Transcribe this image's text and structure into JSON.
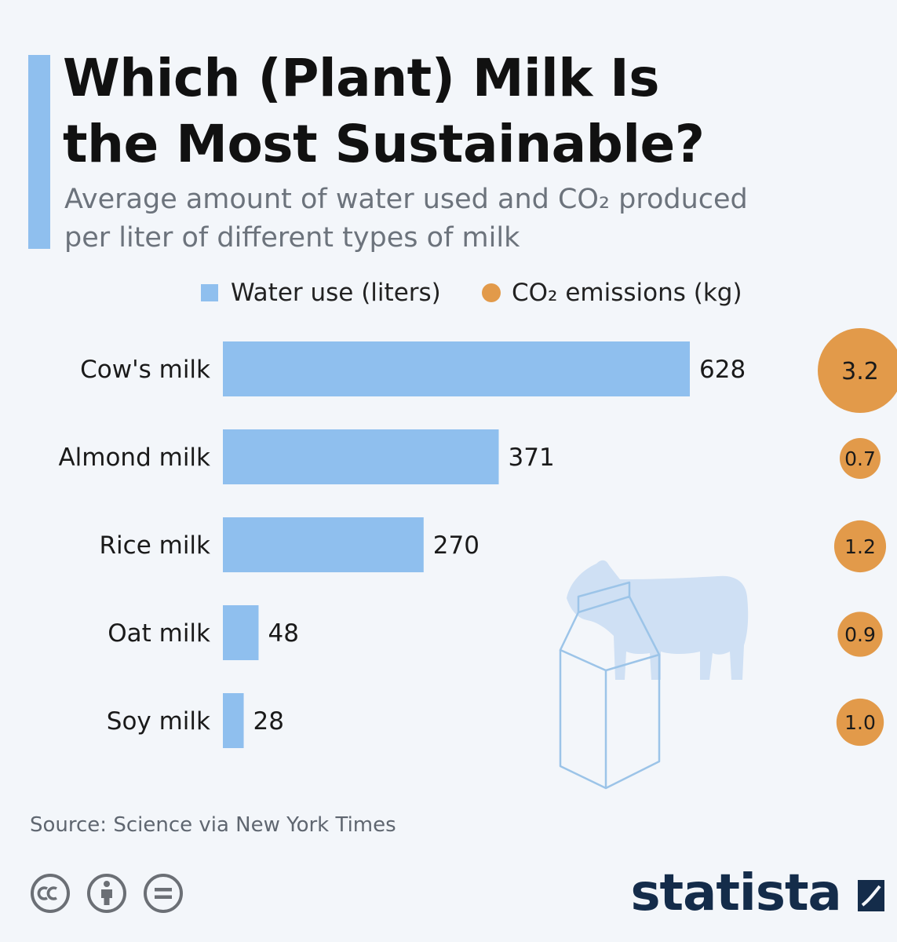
{
  "header": {
    "title_line1": "Which (Plant) Milk Is",
    "title_line2": "the Most Sustainable?",
    "subtitle_line1": "Average amount of water used and CO₂ produced",
    "subtitle_line2": "per liter of different types of milk"
  },
  "legend": {
    "water_label": "Water use (liters)",
    "co2_label": "CO₂ emissions (kg)"
  },
  "chart_data": {
    "type": "bar",
    "orientation": "horizontal",
    "categories": [
      "Cow's milk",
      "Almond milk",
      "Rice milk",
      "Oat milk",
      "Soy milk"
    ],
    "series": [
      {
        "name": "Water use (liters)",
        "values": [
          628,
          371,
          270,
          48,
          28
        ],
        "color": "#8fbfee",
        "labels": [
          "628",
          "371",
          "270",
          "48",
          "28"
        ]
      },
      {
        "name": "CO₂ emissions (kg)",
        "values": [
          3.2,
          0.7,
          1.2,
          0.9,
          1.0
        ],
        "color": "#e29a4a",
        "labels": [
          "3.2",
          "0.7",
          "1.2",
          "0.9",
          "1.0"
        ],
        "mark": "bubble"
      }
    ],
    "legend": "top",
    "grid": false
  },
  "footer": {
    "source": "Source: Science via New York Times",
    "brand": "statista",
    "license_icons": [
      "creative-commons-icon",
      "attribution-icon",
      "no-derivatives-icon"
    ]
  },
  "colors": {
    "accent": "#8fbfee",
    "bubble": "#e29a4a",
    "brand": "#142c4a",
    "illustration": "#cfe0f4"
  }
}
